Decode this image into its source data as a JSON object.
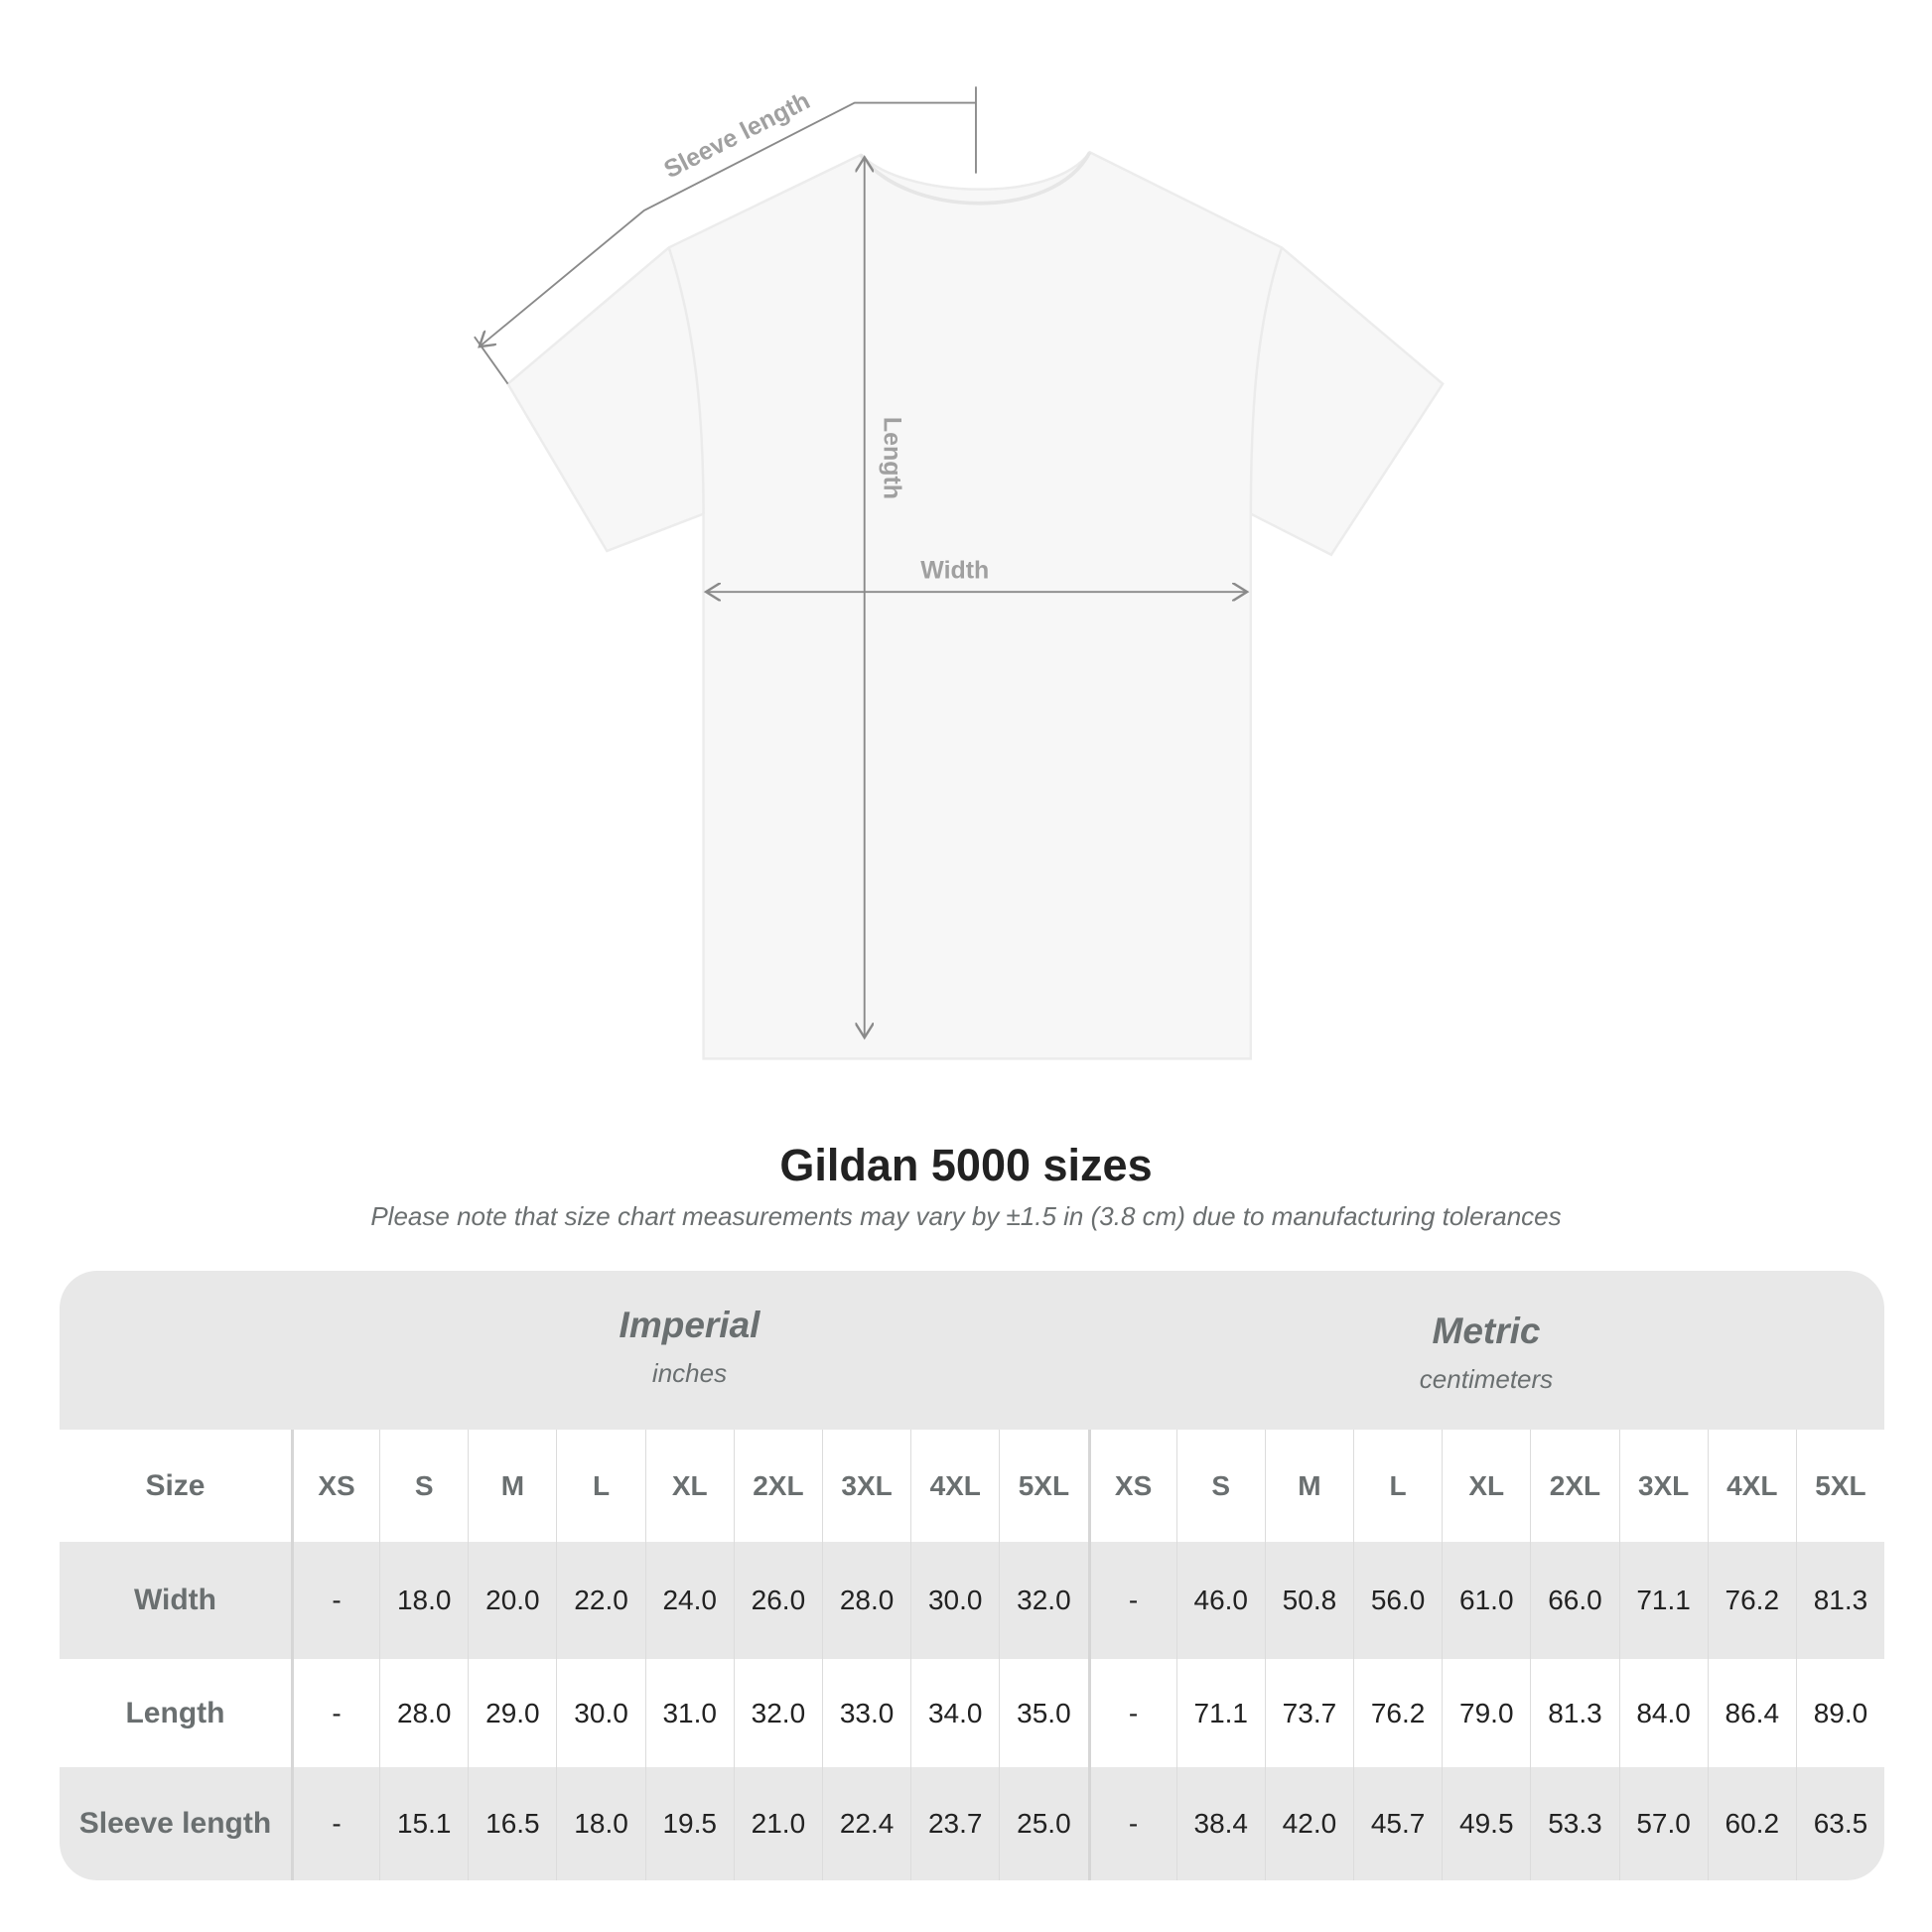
{
  "diagram": {
    "sleeve_label": "Sleeve length",
    "length_label": "Length",
    "width_label": "Width"
  },
  "title": "Gildan 5000 sizes",
  "subtitle": "Please note that size chart measurements may vary by ±1.5 in (3.8 cm) due to manufacturing tolerances",
  "table": {
    "imperial": {
      "name": "Imperial",
      "unit": "inches"
    },
    "metric": {
      "name": "Metric",
      "unit": "centimeters"
    },
    "size_label": "Size",
    "sizes": [
      "XS",
      "S",
      "M",
      "L",
      "XL",
      "2XL",
      "3XL",
      "4XL",
      "5XL"
    ],
    "rows": [
      {
        "label": "Width",
        "imperial": [
          "-",
          "18.0",
          "20.0",
          "22.0",
          "24.0",
          "26.0",
          "28.0",
          "30.0",
          "32.0"
        ],
        "metric": [
          "-",
          "46.0",
          "50.8",
          "56.0",
          "61.0",
          "66.0",
          "71.1",
          "76.2",
          "81.3"
        ]
      },
      {
        "label": "Length",
        "imperial": [
          "-",
          "28.0",
          "29.0",
          "30.0",
          "31.0",
          "32.0",
          "33.0",
          "34.0",
          "35.0"
        ],
        "metric": [
          "-",
          "71.1",
          "73.7",
          "76.2",
          "79.0",
          "81.3",
          "84.0",
          "86.4",
          "89.0"
        ]
      },
      {
        "label": "Sleeve length",
        "imperial": [
          "-",
          "15.1",
          "16.5",
          "18.0",
          "19.5",
          "21.0",
          "22.4",
          "23.7",
          "25.0"
        ],
        "metric": [
          "-",
          "38.4",
          "42.0",
          "45.7",
          "49.5",
          "53.3",
          "57.0",
          "60.2",
          "63.5"
        ]
      }
    ]
  }
}
